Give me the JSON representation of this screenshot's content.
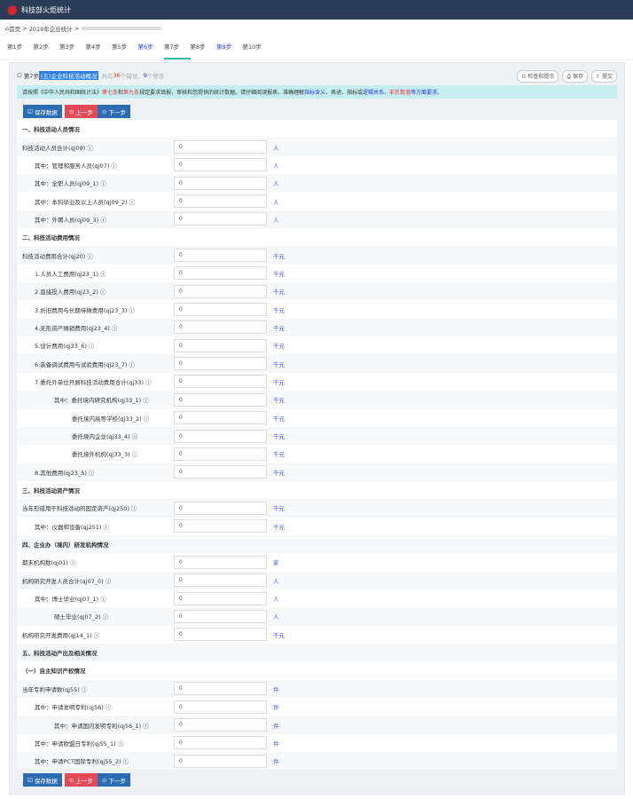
{
  "app": {
    "title": "科技部火炬统计"
  },
  "breadcrumb": {
    "home": "首页",
    "level1": "2019年企业统计"
  },
  "steps": [
    "第1步",
    "第2步",
    "第3步",
    "第4步",
    "第5步",
    "第6步",
    "第7步",
    "第8步",
    "第9步",
    "第10步"
  ],
  "steps_done": [
    5,
    8
  ],
  "steps_active": 6,
  "panel": {
    "step_label": "第7步",
    "section_title": "(五)企业科技活动概况",
    "stat_prefix": "共有",
    "errors": "36",
    "errors_suffix": "个错误，",
    "warnings": "9",
    "warnings_suffix": "个警告"
  },
  "tools": [
    "检查和提示",
    "保存",
    "提交"
  ],
  "notice": {
    "p1": "请按照《中华人民共和国统计法》",
    "p2": "第七条",
    "p3": "和",
    "p4": "第九条",
    "p5": "规定要求填报，审核和您提供的统计数据。请仔细阅读报表，准确理解",
    "p6": "指标含义",
    "p7": "、表述、指标或",
    "p8": "逻辑关系",
    "p9": "、",
    "p10": "非负数值",
    "p11": "等方面要求。"
  },
  "buttons": {
    "save": "保存数据",
    "prev": "上一步",
    "next": "下一步"
  },
  "rows": [
    {
      "t": "sec",
      "label": "一、科技活动人员情况"
    },
    {
      "label": "科技活动人员合计(qj09) ⓘ",
      "value": "0",
      "unit": "人",
      "ind": 0
    },
    {
      "label": "其中：管理和服务人员(qj07) ⓘ",
      "value": "0",
      "unit": "人",
      "ind": 1
    },
    {
      "label": "其中：全职人员(qj09_1) ⓘ",
      "value": "0",
      "unit": "人",
      "ind": 1
    },
    {
      "label": "其中：本科毕业及以上人员(qj09_2) ⓘ",
      "value": "0",
      "unit": "人",
      "ind": 1
    },
    {
      "label": "其中：外聘人员(qj09_3) ⓘ",
      "value": "0",
      "unit": "人",
      "ind": 1
    },
    {
      "t": "sec",
      "label": "二、科技活动费用情况"
    },
    {
      "label": "科技活动费用合计(qj20) ⓘ",
      "value": "0",
      "unit": "千元",
      "ind": 0
    },
    {
      "label": "1.人员人工费用(qj23_1) ⓘ",
      "value": "0",
      "unit": "千元",
      "ind": 1
    },
    {
      "label": "2.直接投入费用(qj23_2) ⓘ",
      "value": "0",
      "unit": "千元",
      "ind": 1
    },
    {
      "label": "3.折旧费用与长期待摊费用(qj23_3) ⓘ",
      "value": "0",
      "unit": "千元",
      "ind": 1
    },
    {
      "label": "4.无形资产摊销费用(qj23_4) ⓘ",
      "value": "0",
      "unit": "千元",
      "ind": 1
    },
    {
      "label": "5.设计费用(qj23_6) ⓘ",
      "value": "0",
      "unit": "千元",
      "ind": 1
    },
    {
      "label": "6.装备调试费用与试验费用(qj23_7) ⓘ",
      "value": "0",
      "unit": "千元",
      "ind": 1
    },
    {
      "label": "7.委托外单位开展科技活动费用合计(qj33) ⓘ",
      "value": "0",
      "unit": "千元",
      "ind": 1
    },
    {
      "label": "其中：委托境内研究机构(qj33_1) ⓘ",
      "value": "0",
      "unit": "千元",
      "ind": 2
    },
    {
      "label": "委托境内高等学校(qj33_2) ⓘ",
      "value": "0",
      "unit": "千元",
      "ind": 3
    },
    {
      "label": "委托境内企业(qj33_4) ⓘ",
      "value": "0",
      "unit": "千元",
      "ind": 3
    },
    {
      "label": "委托境外机构(qj33_3) ⓘ",
      "value": "0",
      "unit": "千元",
      "ind": 3
    },
    {
      "label": "8.其他费用(qj23_5) ⓘ",
      "value": "0",
      "unit": "千元",
      "ind": 1
    },
    {
      "t": "sec",
      "label": "三、科技活动资产情况"
    },
    {
      "label": "当年形成用于科技活动的固定资产(qj250) ⓘ",
      "value": "0",
      "unit": "千元",
      "ind": 0
    },
    {
      "label": "其中：仪器和设备(qj251) ⓘ",
      "value": "0",
      "unit": "千元",
      "ind": 1
    },
    {
      "t": "sec",
      "label": "四、企业办（境内）研发机构情况"
    },
    {
      "label": "期末机构数(qj01) ⓘ",
      "value": "0",
      "unit": "家",
      "ind": 0
    },
    {
      "label": "机构研究开发人员合计(qj07_0) ⓘ",
      "value": "0",
      "unit": "人",
      "ind": 0
    },
    {
      "label": "其中：博士毕业(qj07_1) ⓘ",
      "value": "0",
      "unit": "人",
      "ind": 1
    },
    {
      "label": "硕士毕业(qj07_2) ⓘ",
      "value": "0",
      "unit": "人",
      "ind": 2
    },
    {
      "label": "机构研究开发费用(qj14_1) ⓘ",
      "value": "0",
      "unit": "千元",
      "ind": 0
    },
    {
      "t": "sec",
      "label": "五、科技活动产出及相关情况"
    },
    {
      "t": "sec",
      "label": "（一）自主知识产权情况"
    },
    {
      "label": "当年专利申请数(qj55) ⓘ",
      "value": "0",
      "unit": "件",
      "ind": 0
    },
    {
      "label": "其中：申请发明专利(qj56) ⓘ",
      "value": "0",
      "unit": "件",
      "ind": 1
    },
    {
      "label": "其中：申请国内发明专利(qj56_1) ⓘ",
      "value": "0",
      "unit": "件",
      "ind": 2
    },
    {
      "label": "其中：申请欧盟日专利(qj55_1) ⓘ",
      "value": "0",
      "unit": "件",
      "ind": 1
    },
    {
      "label": "其中：申请PCT国际专利(qj55_2) ⓘ",
      "value": "0",
      "unit": "件",
      "ind": 1
    }
  ]
}
